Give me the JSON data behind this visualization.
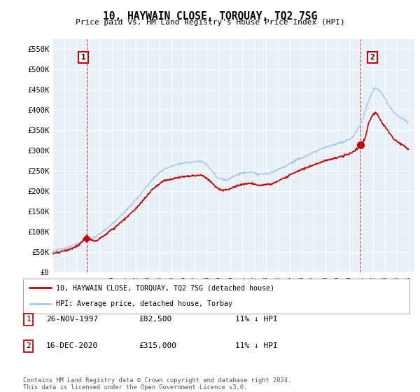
{
  "title": "10, HAYWAIN CLOSE, TORQUAY, TQ2 7SG",
  "subtitle": "Price paid vs. HM Land Registry's House Price Index (HPI)",
  "hpi_color": "#a8c8e8",
  "price_color": "#cc0000",
  "bg_color": "#ffffff",
  "plot_bg_color": "#e8f0f8",
  "grid_color": "#ffffff",
  "sale1_x": 1997.9,
  "sale1_y": 82500,
  "sale1_label": "1",
  "sale2_x": 2020.95,
  "sale2_y": 315000,
  "sale2_label": "2",
  "legend_line1": "10, HAYWAIN CLOSE, TORQUAY, TQ2 7SG (detached house)",
  "legend_line2": "HPI: Average price, detached house, Torbay",
  "table_row1": [
    "1",
    "26-NOV-1997",
    "£82,500",
    "11% ↓ HPI"
  ],
  "table_row2": [
    "2",
    "16-DEC-2020",
    "£315,000",
    "11% ↓ HPI"
  ],
  "footnote": "Contains HM Land Registry data © Crown copyright and database right 2024.\nThis data is licensed under the Open Government Licence v3.0.",
  "xmin": 1995,
  "xmax": 2025.5,
  "ylim": [
    0,
    575000
  ],
  "yticks": [
    0,
    50000,
    100000,
    150000,
    200000,
    250000,
    300000,
    350000,
    400000,
    450000,
    500000,
    550000
  ],
  "ytick_labels": [
    "£0",
    "£50K",
    "£100K",
    "£150K",
    "£200K",
    "£250K",
    "£300K",
    "£350K",
    "£400K",
    "£450K",
    "£500K",
    "£550K"
  ]
}
